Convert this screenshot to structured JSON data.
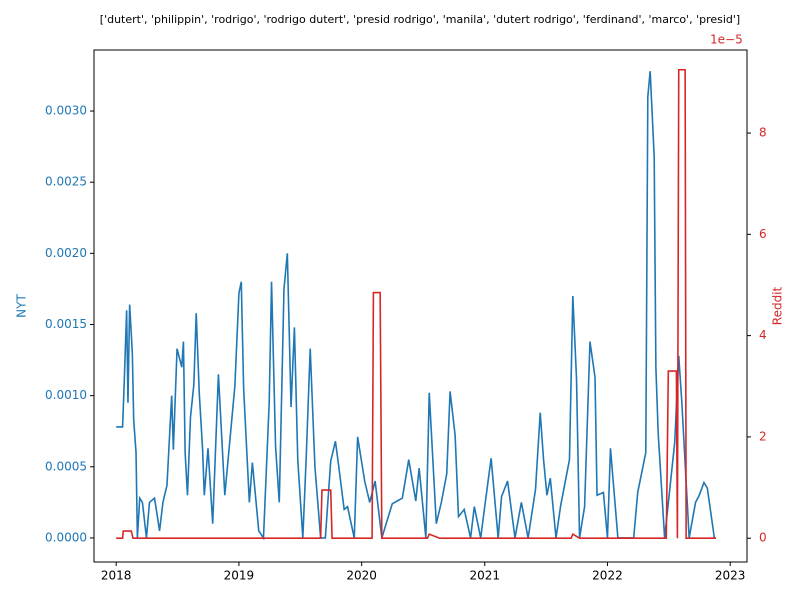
{
  "chart_data": {
    "type": "line",
    "title": "['dutert', 'philippin', 'rodrigo', 'rodrigo dutert', 'presid rodrigo', 'manila', 'dutert rodrigo', 'ferdinand', 'marco', 'presid']",
    "y_label": "NYT",
    "y2_label": "Reddit",
    "y2_offset_label": "1e−5",
    "xlim": [
      "2017-10-27",
      "2023-02-20"
    ],
    "xticks": [
      {
        "value": "2018-01-01",
        "label": "2018"
      },
      {
        "value": "2019-01-01",
        "label": "2019"
      },
      {
        "value": "2020-01-01",
        "label": "2020"
      },
      {
        "value": "2021-01-01",
        "label": "2021"
      },
      {
        "value": "2022-01-01",
        "label": "2022"
      },
      {
        "value": "2023-01-01",
        "label": "2023"
      }
    ],
    "ylim": [
      -0.000169,
      0.003429
    ],
    "yticks": [
      {
        "value": 0,
        "label": "0.0000"
      },
      {
        "value": 0.0005,
        "label": "0.0005"
      },
      {
        "value": 0.001,
        "label": "0.0010"
      },
      {
        "value": 0.0015,
        "label": "0.0015"
      },
      {
        "value": 0.002,
        "label": "0.0020"
      },
      {
        "value": 0.0025,
        "label": "0.0025"
      },
      {
        "value": 0.003,
        "label": "0.0030"
      }
    ],
    "y2lim": [
      -4.7e-06,
      9.64e-05
    ],
    "y2ticks": [
      {
        "value": 0,
        "label": "0"
      },
      {
        "value": 2e-05,
        "label": "2"
      },
      {
        "value": 4e-05,
        "label": "4"
      },
      {
        "value": 6e-05,
        "label": "6"
      },
      {
        "value": 8e-05,
        "label": "8"
      }
    ],
    "series": [
      {
        "name": "NYT",
        "color": "#1f77b4",
        "x": [
          "2018-01-01",
          "2018-01-20",
          "2018-01-25",
          "2018-02-01",
          "2018-02-05",
          "2018-02-10",
          "2018-02-18",
          "2018-02-22",
          "2018-03-01",
          "2018-03-05",
          "2018-03-12",
          "2018-03-20",
          "2018-04-01",
          "2018-04-10",
          "2018-04-25",
          "2018-05-10",
          "2018-05-20",
          "2018-06-01",
          "2018-06-15",
          "2018-06-20",
          "2018-07-01",
          "2018-07-15",
          "2018-07-20",
          "2018-07-25",
          "2018-08-01",
          "2018-08-10",
          "2018-08-20",
          "2018-08-27",
          "2018-09-05",
          "2018-09-15",
          "2018-09-20",
          "2018-10-01",
          "2018-10-15",
          "2018-11-01",
          "2018-11-20",
          "2018-12-01",
          "2018-12-20",
          "2019-01-01",
          "2019-01-08",
          "2019-01-15",
          "2019-02-01",
          "2019-02-10",
          "2019-03-01",
          "2019-03-15",
          "2019-04-01",
          "2019-04-08",
          "2019-04-20",
          "2019-05-01",
          "2019-05-15",
          "2019-05-25",
          "2019-06-05",
          "2019-06-15",
          "2019-06-25",
          "2019-07-10",
          "2019-07-20",
          "2019-08-01",
          "2019-08-15",
          "2019-09-01",
          "2019-09-15",
          "2019-10-01",
          "2019-10-15",
          "2019-10-25",
          "2019-11-10",
          "2019-11-20",
          "2019-12-10",
          "2019-12-20",
          "2020-01-10",
          "2020-01-25",
          "2020-02-10",
          "2020-03-01",
          "2020-04-01",
          "2020-05-01",
          "2020-05-20",
          "2020-06-10",
          "2020-06-20",
          "2020-07-10",
          "2020-07-20",
          "2020-08-10",
          "2020-08-25",
          "2020-09-10",
          "2020-09-20",
          "2020-10-05",
          "2020-10-15",
          "2020-11-01",
          "2020-11-20",
          "2020-12-01",
          "2020-12-20",
          "2021-01-01",
          "2021-01-20",
          "2021-02-10",
          "2021-02-20",
          "2021-03-10",
          "2021-04-01",
          "2021-04-20",
          "2021-05-10",
          "2021-06-01",
          "2021-06-15",
          "2021-06-25",
          "2021-07-05",
          "2021-07-15",
          "2021-08-01",
          "2021-08-15",
          "2021-09-10",
          "2021-09-20",
          "2021-10-01",
          "2021-10-10",
          "2021-10-25",
          "2021-11-10",
          "2021-11-25",
          "2021-12-01",
          "2021-12-20",
          "2022-01-01",
          "2022-01-10",
          "2022-02-01",
          "2022-03-20",
          "2022-04-01",
          "2022-04-25",
          "2022-05-01",
          "2022-05-08",
          "2022-05-20",
          "2022-05-25",
          "2022-06-01",
          "2022-06-20",
          "2022-07-20",
          "2022-08-01",
          "2022-08-10",
          "2022-09-01",
          "2022-09-20",
          "2022-10-01",
          "2022-10-15",
          "2022-10-25",
          "2022-11-15"
        ],
        "values": [
          0.00078,
          0.00078,
          0.0011,
          0.0016,
          0.00095,
          0.00164,
          0.0013,
          0.00083,
          0.0006,
          0.0,
          0.00028,
          0.00025,
          0.0,
          0.00025,
          0.00028,
          5e-05,
          0.00025,
          0.00037,
          0.001,
          0.00062,
          0.00133,
          0.0012,
          0.00138,
          0.0006,
          0.0003,
          0.00085,
          0.00108,
          0.00158,
          0.00102,
          0.00062,
          0.0003,
          0.00063,
          0.0001,
          0.00115,
          0.0003,
          0.00058,
          0.00107,
          0.00172,
          0.0018,
          0.00105,
          0.00025,
          0.00053,
          5e-05,
          0.0,
          0.00095,
          0.0018,
          0.00064,
          0.00025,
          0.00175,
          0.002,
          0.00092,
          0.00148,
          0.00055,
          0.0,
          0.00056,
          0.00133,
          0.0005,
          0.0,
          0.0,
          0.00054,
          0.00068,
          0.0005,
          0.0002,
          0.00022,
          0.0,
          0.00071,
          0.0004,
          0.00025,
          0.0004,
          0.0,
          0.00024,
          0.00028,
          0.00055,
          0.00026,
          0.00049,
          0.0,
          0.00102,
          0.0001,
          0.00025,
          0.00045,
          0.00103,
          0.00072,
          0.00015,
          0.0002,
          0.0,
          0.00022,
          0.0,
          0.00022,
          0.00056,
          0.0,
          0.00029,
          0.0004,
          0.0,
          0.00025,
          0.0,
          0.00034,
          0.00088,
          0.00055,
          0.0003,
          0.00042,
          0.0,
          0.00023,
          0.00055,
          0.0017,
          0.00112,
          0.0,
          0.00022,
          0.00138,
          0.00113,
          0.0003,
          0.00032,
          0.0,
          0.00063,
          0.0,
          0.0,
          0.00032,
          0.0006,
          0.0031,
          0.00328,
          0.00268,
          0.0012,
          0.00073,
          0.0,
          0.00067,
          0.00128,
          0.00096,
          0.0,
          0.00025,
          0.0003,
          0.00039,
          0.00035,
          0.0
        ]
      },
      {
        "name": "Reddit",
        "color": "#d62728",
        "axis": "y2",
        "x": [
          "2018-01-01",
          "2018-01-20",
          "2018-01-22",
          "2018-02-15",
          "2018-02-20",
          "2019-09-01",
          "2019-09-05",
          "2019-10-01",
          "2019-10-05",
          "2020-02-01",
          "2020-02-05",
          "2020-02-25",
          "2020-03-01",
          "2020-07-15",
          "2020-07-20",
          "2020-08-20",
          "2021-09-15",
          "2021-09-20",
          "2021-10-10",
          "2022-06-25",
          "2022-07-01",
          "2022-07-25",
          "2022-07-28",
          "2022-08-01",
          "2022-08-20",
          "2022-08-23",
          "2022-11-20"
        ],
        "values": [
          0,
          0,
          1.4e-06,
          1.4e-06,
          0,
          0,
          9.5e-06,
          9.5e-06,
          0,
          0,
          4.85e-05,
          4.85e-05,
          0,
          0,
          8e-07,
          0,
          0,
          8e-07,
          0,
          0,
          3.3e-05,
          3.3e-05,
          0,
          9.25e-05,
          9.25e-05,
          0,
          0
        ]
      }
    ]
  }
}
